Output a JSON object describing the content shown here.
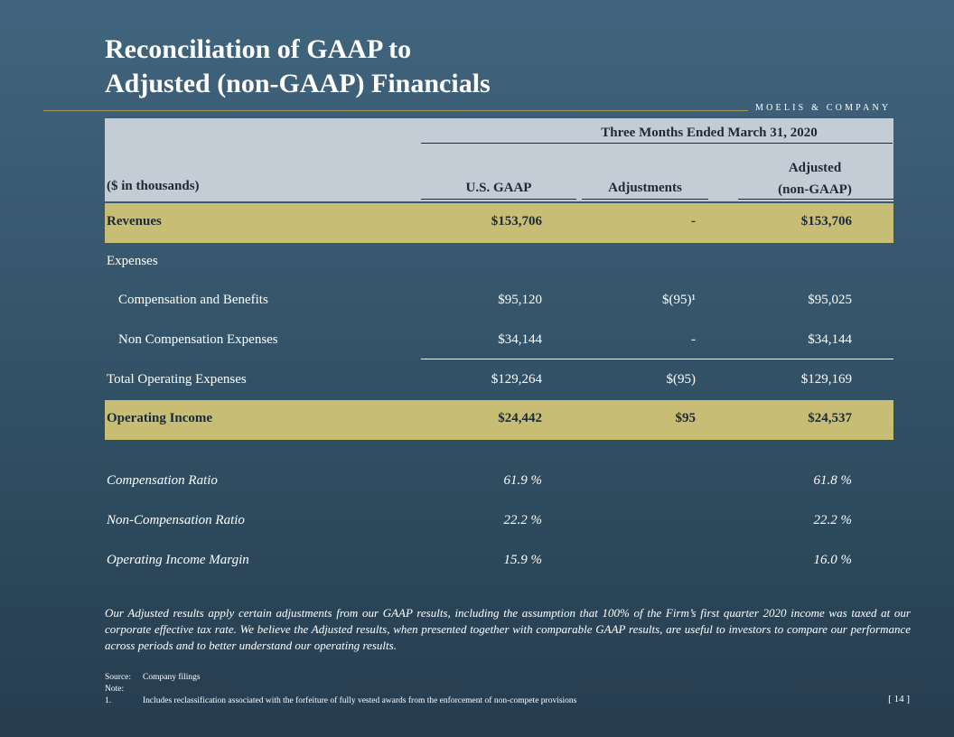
{
  "title": {
    "line1": "Reconciliation of GAAP to",
    "line2": "Adjusted (non-GAAP) Financials"
  },
  "brand": "MOELIS & COMPANY",
  "table": {
    "period_header": "Three Months Ended March 31, 2020",
    "units_label": "($ in thousands)",
    "columns": {
      "gaap": "U.S. GAAP",
      "adjustments": "Adjustments",
      "adjusted_line1": "Adjusted",
      "adjusted_line2": "(non-GAAP)"
    },
    "rows": {
      "revenues": {
        "label": "Revenues",
        "gaap": "$153,706",
        "adj": "-",
        "adjusted": "$153,706"
      },
      "expenses": {
        "label": "Expenses"
      },
      "comp": {
        "label": "Compensation and Benefits",
        "gaap": "$95,120",
        "adj": "$(95)¹",
        "adjusted": "$95,025"
      },
      "noncomp": {
        "label": "Non Compensation Expenses",
        "gaap": "$34,144",
        "adj": "-",
        "adjusted": "$34,144"
      },
      "total_opex": {
        "label": "Total Operating Expenses",
        "gaap": "$129,264",
        "adj": "$(95)",
        "adjusted": "$129,169"
      },
      "op_income": {
        "label": "Operating Income",
        "gaap": "$24,442",
        "adj": "$95",
        "adjusted": "$24,537"
      },
      "comp_ratio": {
        "label": "Compensation Ratio",
        "gaap": "61.9 %",
        "adjusted": "61.8 %"
      },
      "noncomp_ratio": {
        "label": "Non-Compensation Ratio",
        "gaap": "22.2 %",
        "adjusted": "22.2 %"
      },
      "op_margin": {
        "label": "Operating Income Margin",
        "gaap": "15.9 %",
        "adjusted": "16.0 %"
      }
    }
  },
  "paragraph": "Our Adjusted results apply certain adjustments from our GAAP results, including the assumption that 100% of the Firm’s first quarter 2020 income was taxed at our corporate effective tax rate.  We believe the Adjusted results, when presented together with comparable GAAP results, are useful to investors to compare our performance across periods and to better understand our operating results.",
  "footnotes": {
    "source_key": "Source:",
    "source_text": "Company filings",
    "note_key": "Note:",
    "n1_key": "1.",
    "n1_text": "Includes reclassification associated with the forfeiture of fully vested awards from the enforcement of non-compete provisions"
  },
  "page_number": "[ 14 ]",
  "colors": {
    "background": "#345469",
    "highlight_row": "#c8bd74",
    "header_box": "#c4ccd6",
    "gold_rule": "#a89a60"
  }
}
